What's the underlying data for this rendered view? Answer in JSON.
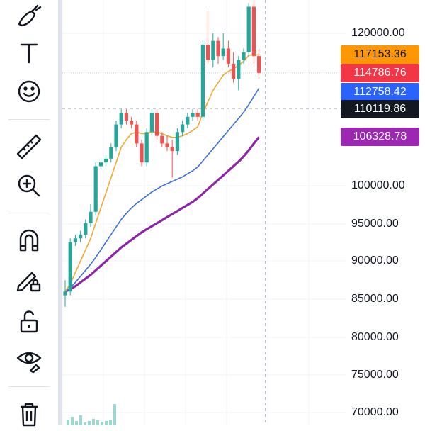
{
  "toolbar": {
    "tools": [
      {
        "name": "brush-icon"
      },
      {
        "name": "text-tool-icon"
      },
      {
        "name": "emoji-icon"
      },
      {
        "name": "ruler-icon"
      },
      {
        "name": "zoom-in-icon"
      },
      {
        "name": "magnet-icon"
      },
      {
        "name": "lock-drawing-icon"
      },
      {
        "name": "unlock-icon"
      },
      {
        "name": "hide-eye-icon"
      },
      {
        "name": "trash-icon"
      }
    ]
  },
  "price_axis": {
    "labels": [
      "120000.00",
      "100000.00",
      "95000.00",
      "90000.00",
      "85000.00",
      "80000.00",
      "75000.00",
      "70000.00"
    ]
  },
  "price_tags": [
    {
      "value": "117153.36",
      "bg": "#ff9800",
      "fg": "#131722"
    },
    {
      "value": "114786.76",
      "bg": "#f23645",
      "fg": "#ffffff"
    },
    {
      "value": "112758.42",
      "bg": "#2962ff",
      "fg": "#ffffff"
    },
    {
      "value": "110119.86",
      "bg": "#131722",
      "fg": "#ffffff"
    },
    {
      "value": "106328.78",
      "bg": "#9c27b0",
      "fg": "#ffffff"
    }
  ],
  "colors": {
    "up": "#26a69a",
    "down": "#ef5350",
    "ma_fast": "#f0a830",
    "ma_mid": "#3d6fd6",
    "ma_slow": "#8e24aa",
    "crosshair": "#787b86"
  },
  "chart_data": {
    "type": "candlestick",
    "y_range": [
      69000,
      125000
    ],
    "candles": [
      [
        85500,
        87500,
        84000,
        86000
      ],
      [
        86000,
        93000,
        85500,
        92500
      ],
      [
        92500,
        93500,
        92000,
        93000
      ],
      [
        93000,
        94000,
        92500,
        93500
      ],
      [
        93500,
        95500,
        93000,
        95000
      ],
      [
        95000,
        97500,
        94500,
        96500
      ],
      [
        96500,
        103000,
        96000,
        102500
      ],
      [
        102500,
        103500,
        102000,
        103000
      ],
      [
        103000,
        104000,
        102500,
        103500
      ],
      [
        103500,
        105500,
        103000,
        105000
      ],
      [
        105000,
        108500,
        104500,
        108000
      ],
      [
        108000,
        110000,
        107500,
        109500
      ],
      [
        109500,
        110000,
        108000,
        108500
      ],
      [
        108500,
        109000,
        107500,
        108000
      ],
      [
        108000,
        108500,
        105000,
        105500
      ],
      [
        105500,
        106000,
        102500,
        103000
      ],
      [
        103000,
        107500,
        102500,
        107000
      ],
      [
        107000,
        110000,
        106500,
        109500
      ],
      [
        109500,
        110000,
        106000,
        106500
      ],
      [
        106500,
        107000,
        105000,
        105500
      ],
      [
        105500,
        106500,
        104500,
        105000
      ],
      [
        105000,
        106000,
        101000,
        104500
      ],
      [
        104500,
        107500,
        104000,
        107000
      ],
      [
        107000,
        108500,
        106500,
        108000
      ],
      [
        108000,
        109500,
        107500,
        109000
      ],
      [
        109000,
        110000,
        108500,
        109500
      ],
      [
        109500,
        110000,
        108500,
        109000
      ],
      [
        109000,
        119000,
        108500,
        118500
      ],
      [
        118500,
        123000,
        116000,
        116500
      ],
      [
        116500,
        120000,
        115500,
        119000
      ],
      [
        119000,
        119500,
        116000,
        117000
      ],
      [
        117000,
        120000,
        116500,
        118000
      ],
      [
        118000,
        119000,
        115500,
        116000
      ],
      [
        116000,
        117500,
        113500,
        114000
      ],
      [
        114000,
        117000,
        112500,
        116500
      ],
      [
        116500,
        118000,
        116000,
        117500
      ],
      [
        117500,
        124000,
        117000,
        123500
      ],
      [
        123500,
        124500,
        116000,
        117000
      ],
      [
        117000,
        118000,
        114000,
        114786.76
      ]
    ],
    "ma_fast": [
      86000,
      87000,
      88500,
      90000,
      91500,
      93000,
      95000,
      97000,
      99000,
      101000,
      103000,
      105000,
      106000,
      106800,
      107000,
      106800,
      106800,
      107000,
      107000,
      106800,
      106500,
      106300,
      106300,
      106500,
      106800,
      107200,
      107700,
      109500,
      111000,
      112500,
      113500,
      114500,
      115000,
      115300,
      115800,
      116300,
      117100,
      117200,
      117153.36
    ],
    "ma_mid": [
      86000,
      86500,
      87200,
      88000,
      88800,
      89600,
      90500,
      91500,
      92500,
      93500,
      94500,
      95500,
      96300,
      97000,
      97600,
      98100,
      98600,
      99100,
      99500,
      99900,
      100200,
      100500,
      100800,
      101100,
      101500,
      101900,
      102400,
      103200,
      104000,
      104800,
      105600,
      106400,
      107200,
      108000,
      108800,
      109600,
      110600,
      111700,
      112758.42
    ],
    "ma_slow": [
      86000,
      86300,
      86700,
      87200,
      87700,
      88200,
      88800,
      89400,
      90000,
      90600,
      91200,
      91800,
      92300,
      92800,
      93300,
      93800,
      94200,
      94600,
      95000,
      95400,
      95800,
      96200,
      96600,
      97000,
      97400,
      97800,
      98300,
      98900,
      99500,
      100100,
      100700,
      101300,
      101900,
      102500,
      103100,
      103800,
      104600,
      105500,
      106328.78
    ],
    "volume_bars": [
      8000,
      12000,
      6000,
      14000,
      4000,
      6000,
      9000,
      7000,
      5000,
      6000,
      8000,
      30000
    ],
    "crosshair_price": 110119.86,
    "last_price": 114786.76
  }
}
